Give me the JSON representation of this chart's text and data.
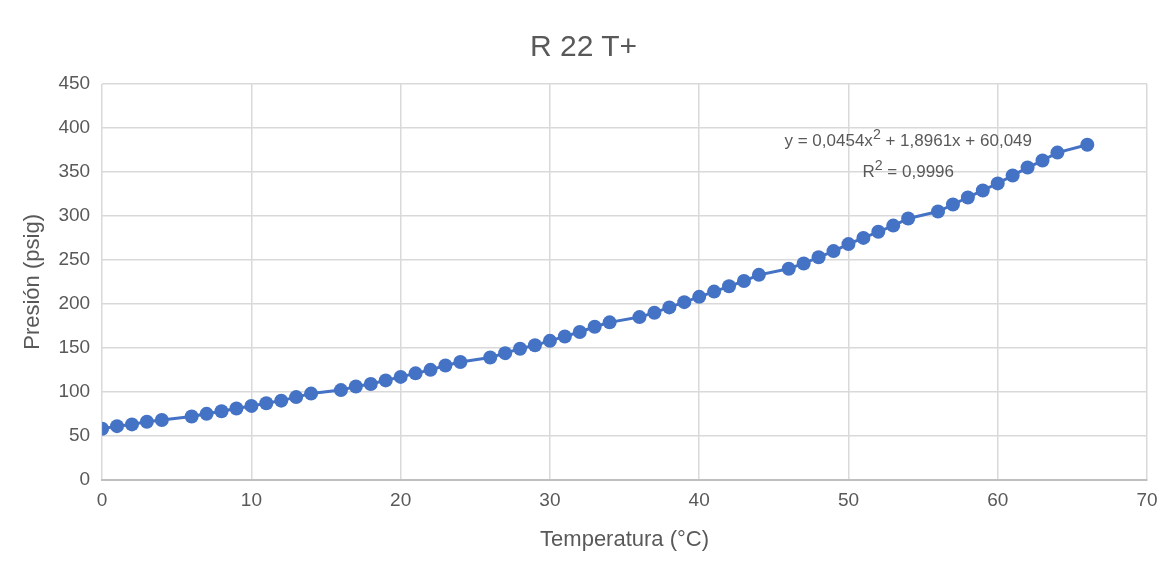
{
  "chart_data": {
    "type": "line",
    "title": "R 22 T+",
    "xlabel": "Temperatura (°C)",
    "ylabel": "Presión (psig)",
    "x": [
      0,
      1,
      2,
      3,
      4,
      6,
      7,
      8,
      9,
      10,
      11,
      12,
      13,
      14,
      16,
      17,
      18,
      19,
      20,
      21,
      22,
      23,
      24,
      26,
      27,
      28,
      29,
      30,
      31,
      32,
      33,
      34,
      36,
      37,
      38,
      39,
      40,
      41,
      42,
      43,
      44,
      46,
      47,
      48,
      49,
      50,
      51,
      52,
      53,
      54,
      56,
      57,
      58,
      59,
      60,
      61,
      62,
      63,
      64,
      66
    ],
    "series": [
      {
        "color": "#4472c4",
        "values": [
          58,
          61,
          63,
          66,
          68,
          72,
          75,
          78,
          81,
          84,
          87,
          90,
          94,
          98,
          102,
          106,
          109,
          113,
          117,
          121,
          125,
          130,
          134,
          139,
          144,
          149,
          153,
          158,
          163,
          168,
          174,
          179,
          185,
          190,
          196,
          202,
          208,
          214,
          220,
          226,
          233,
          240,
          246,
          253,
          260,
          268,
          275,
          282,
          289,
          297,
          305,
          313,
          321,
          329,
          337,
          346,
          355,
          363,
          372,
          381
        ]
      }
    ],
    "xlim": [
      0,
      70
    ],
    "xticks": [
      0,
      10,
      20,
      30,
      40,
      50,
      60,
      70
    ],
    "ylim": [
      0,
      450
    ],
    "yticks": [
      0,
      50,
      100,
      150,
      200,
      250,
      300,
      350,
      400,
      450
    ],
    "grid": true,
    "legend": false,
    "marker": "circle",
    "line_style": "solid",
    "annotations": [
      "y = 0,0454x$^{2}$ + 1,8961x + 60,049",
      "R$^{2}$ = 0,9996"
    ]
  }
}
